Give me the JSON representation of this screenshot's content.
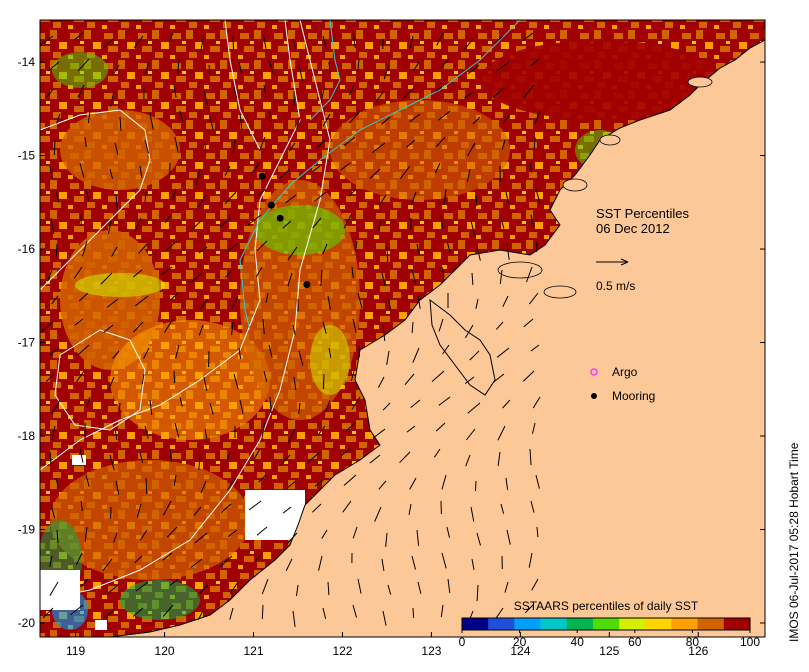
{
  "map": {
    "title_line1": "SST Percentiles",
    "title_line2": "06 Dec 2012",
    "vector_scale_label": "0.5 m/s",
    "legend": {
      "argo_label": "Argo",
      "mooring_label": "Mooring",
      "argo_color": "#ff33ff",
      "mooring_color": "#000000"
    },
    "colorbar": {
      "title": "SSTAARS percentiles of daily SST",
      "ticks": [
        "0",
        "20",
        "40",
        "60",
        "80",
        "100"
      ],
      "colors": [
        "#00008b",
        "#1e50dc",
        "#00a0ff",
        "#00c8c8",
        "#00b450",
        "#50dc00",
        "#d2f000",
        "#ffd200",
        "#ffa000",
        "#d26400",
        "#a00000"
      ]
    },
    "x_ticks": [
      "119",
      "120",
      "121",
      "122",
      "123",
      "124",
      "125",
      "126"
    ],
    "y_ticks": [
      "-14",
      "-15",
      "-16",
      "-17",
      "-18",
      "-19",
      "-20"
    ],
    "lon_range": [
      118.6,
      126.75
    ],
    "lat_range": [
      -20.15,
      -13.55
    ],
    "moorings": [
      {
        "lon": 121.1,
        "lat": -15.22
      },
      {
        "lon": 121.2,
        "lat": -15.53
      },
      {
        "lon": 121.3,
        "lat": -15.67
      },
      {
        "lon": 121.6,
        "lat": -16.38
      }
    ],
    "land_color": "#fcc898",
    "ocean_base_color": "#a00000",
    "credit": "IMOS 06-Jul-2017 05:28 Hobart Time"
  }
}
